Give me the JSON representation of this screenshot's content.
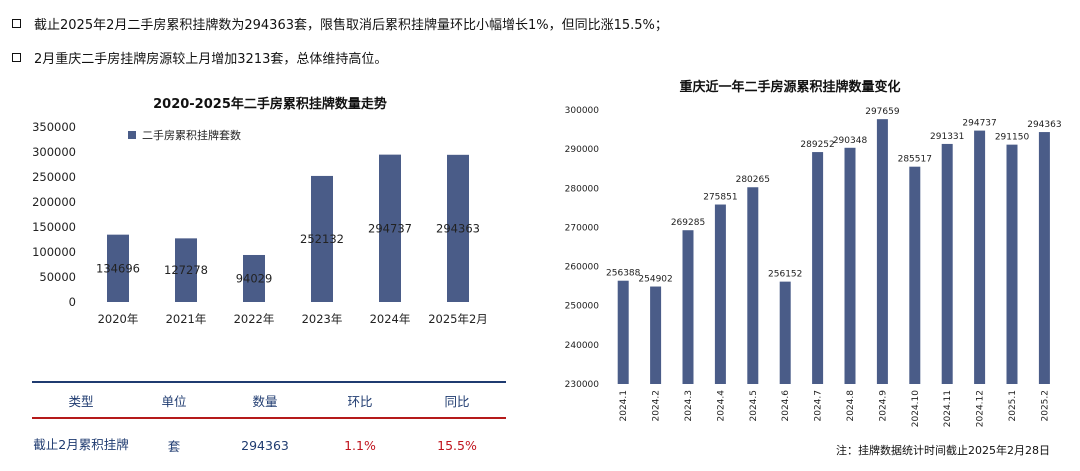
{
  "bullets": [
    "截止2025年2月二手房累积挂牌数为294363套，限售取消后累积挂牌量环比小幅增长1%，但同比涨15.5%；",
    "2月重庆二手房挂牌房源较上月增加3213套，总体维持高位。"
  ],
  "colors": {
    "bar": "#4a5c88",
    "table_header_line": "#1f3b70",
    "table_mid_line": "#b51a1a",
    "red_text": "#c0141e"
  },
  "chart_data": [
    {
      "type": "bar",
      "title": "2020-2025年二手房累积挂牌数量走势",
      "categories": [
        "2020年",
        "2021年",
        "2022年",
        "2023年",
        "2024年",
        "2025年2月"
      ],
      "series": [
        {
          "name": "二手房累积挂牌套数",
          "values": [
            134696,
            127278,
            94029,
            252132,
            294737,
            294363
          ]
        }
      ],
      "ylim": [
        0,
        350000
      ],
      "yticks": [
        "350000",
        "300000",
        "250000",
        "200000",
        "150000",
        "100000",
        "50000",
        "0"
      ],
      "legend": "top-left",
      "grid": false
    },
    {
      "type": "bar",
      "title": "重庆近一年二手房源累积挂牌数量变化",
      "categories": [
        "2024.1",
        "2024.2",
        "2024.3",
        "2024.4",
        "2024.5",
        "2024.6",
        "2024.7",
        "2024.8",
        "2024.9",
        "2024.10",
        "2024.11",
        "2024.12",
        "2025.1",
        "2025.2"
      ],
      "series": [
        {
          "values": [
            256388,
            254902,
            269285,
            275851,
            280265,
            256152,
            289252,
            290348,
            297659,
            285517,
            291331,
            294737,
            291150,
            294363
          ]
        }
      ],
      "ylim": [
        230000,
        300000
      ],
      "yticks": [
        "300000",
        "290000",
        "280000",
        "270000",
        "260000",
        "250000",
        "240000",
        "230000"
      ],
      "grid": false
    }
  ],
  "table": {
    "headers": [
      "类型",
      "单位",
      "数量",
      "环比",
      "同比"
    ],
    "row": [
      "截止2月累积挂牌",
      "套",
      "294363",
      "1.1%",
      "15.5%"
    ]
  },
  "footnote": "注：挂牌数据统计时间截止2025年2月28日"
}
